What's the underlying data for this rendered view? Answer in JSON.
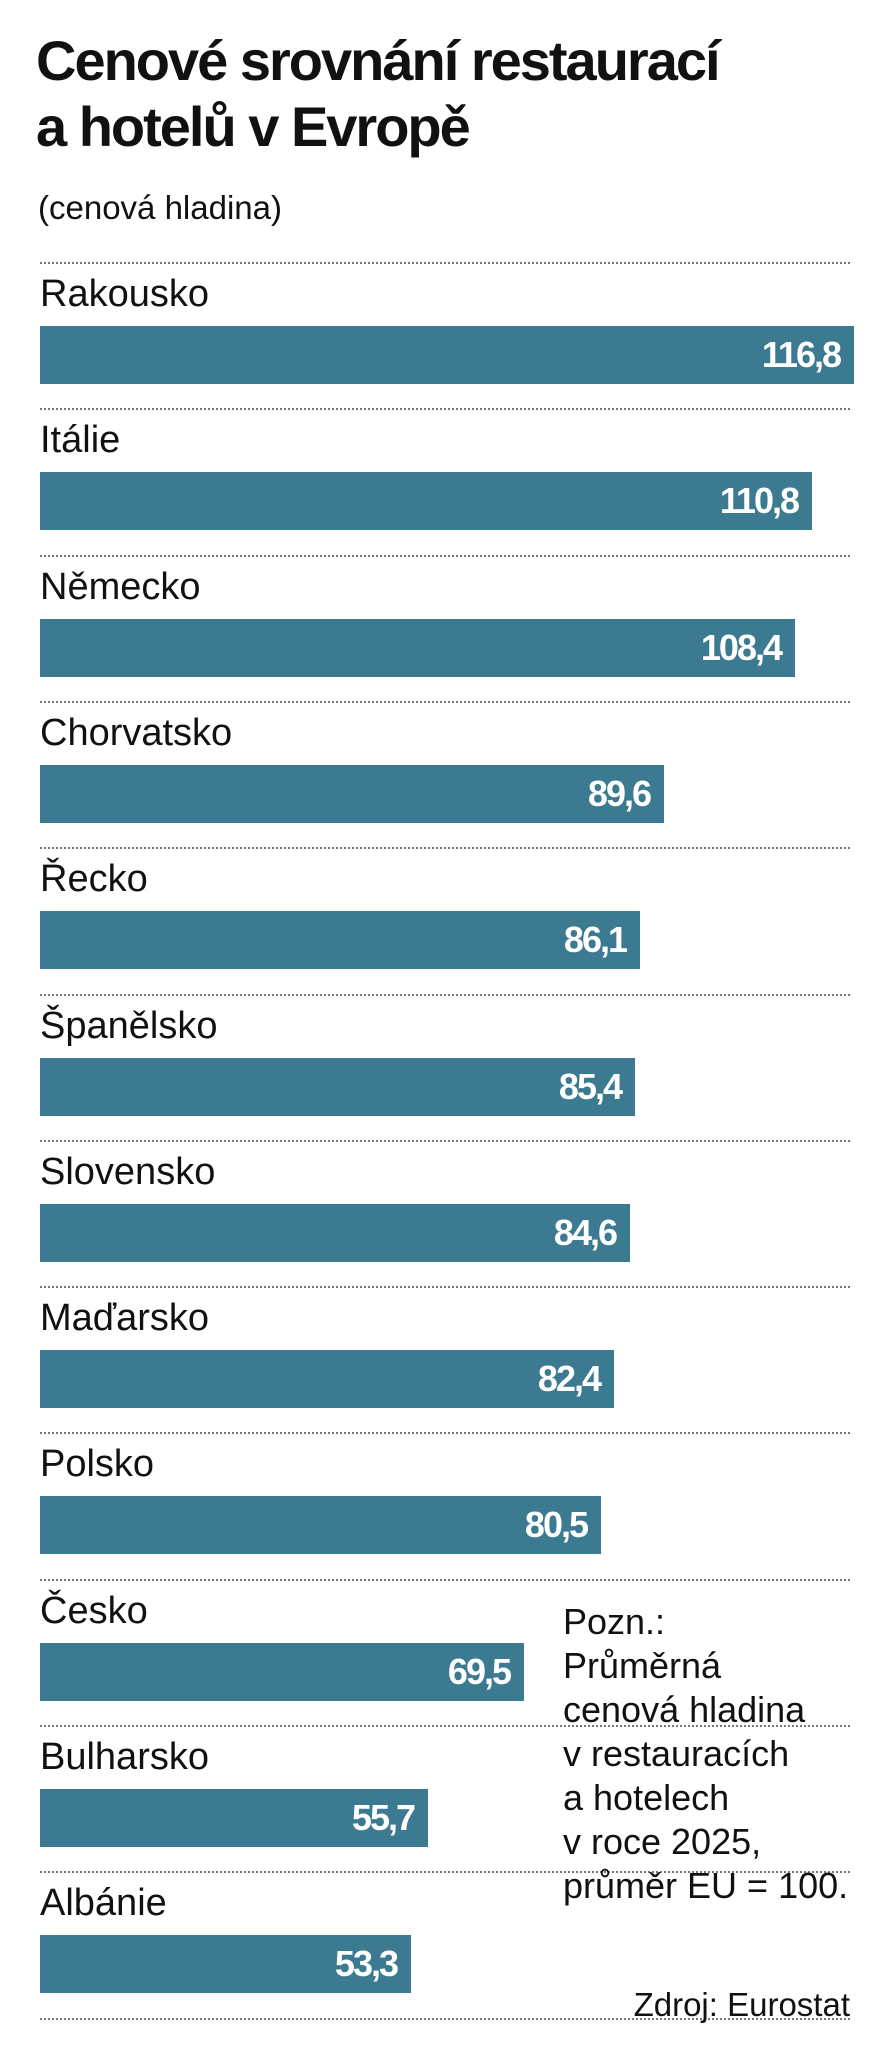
{
  "chart_data": {
    "type": "bar",
    "orientation": "horizontal",
    "title": "Cenové srovnání restaurací a hotelů v Evropě",
    "title_lines": [
      "Cenové srovnání restaurací",
      "a hotelů v Evropě"
    ],
    "subtitle": "(cenová hladina)",
    "categories": [
      "Rakousko",
      "Itálie",
      "Německo",
      "Chorvatsko",
      "Řecko",
      "Španělsko",
      "Slovensko",
      "Maďarsko",
      "Polsko",
      "Česko",
      "Bulharsko",
      "Albánie"
    ],
    "values": [
      116.8,
      110.8,
      108.4,
      89.6,
      86.1,
      85.4,
      84.6,
      82.4,
      80.5,
      69.5,
      55.7,
      53.3
    ],
    "value_labels": [
      "116,8",
      "110,8",
      "108,4",
      "89,6",
      "86,1",
      "85,4",
      "84,6",
      "82,4",
      "80,5",
      "69,5",
      "55,7",
      "53,3"
    ],
    "xlim": [
      0,
      116.8
    ],
    "bar_color": "#3c7a91",
    "value_label_color": "#ffffff",
    "separator_color": "#777777",
    "grid": false,
    "note_lines": [
      "Pozn.:",
      "Průměrná",
      "cenová hladina",
      "v restauracích",
      "a hotelech",
      "v roce 2025,",
      "průměr EU = 100."
    ],
    "source": "Zdroj: Eurostat"
  }
}
